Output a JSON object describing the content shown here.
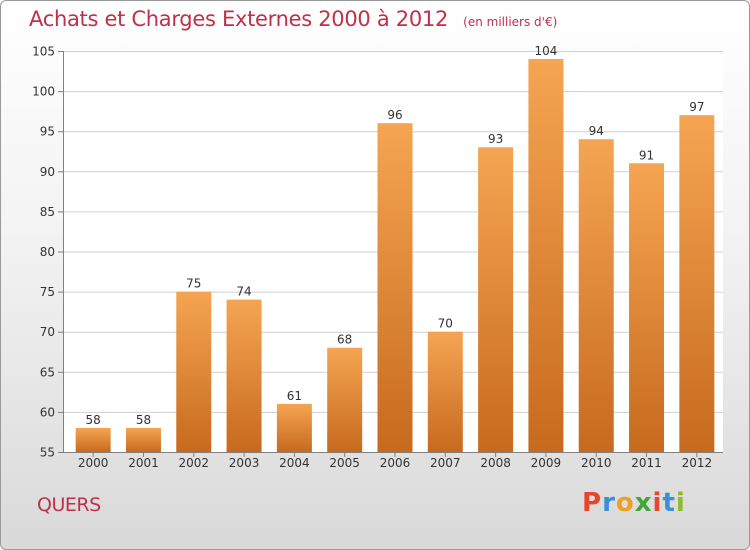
{
  "header": {
    "title": "Achats et Charges Externes 2000 à 2012",
    "unit": "(en milliers d'€)"
  },
  "footer": {
    "commune": "QUERS",
    "brand_letters": [
      "P",
      "r",
      "o",
      "x",
      "i",
      "t",
      "i"
    ],
    "brand_colors": [
      "#e8452c",
      "#3a8fd6",
      "#f0a01e",
      "#3fa63a",
      "#e8452c",
      "#3a8fd6",
      "#8bbd2a"
    ]
  },
  "colors": {
    "bar_top": "#f5a552",
    "bar_bottom": "#c76a1e",
    "title": "#c0304a",
    "grid": "#d0d0d0",
    "axis": "#808080"
  },
  "chart_data": {
    "type": "bar",
    "categories": [
      "2000",
      "2001",
      "2002",
      "2003",
      "2004",
      "2005",
      "2006",
      "2007",
      "2008",
      "2009",
      "2010",
      "2011",
      "2012"
    ],
    "values": [
      58,
      58,
      75,
      74,
      61,
      68,
      96,
      70,
      93,
      104,
      94,
      91,
      97
    ],
    "data_labels": [
      "58",
      "58",
      "75",
      "74",
      "61",
      "68",
      "96",
      "70",
      "93",
      "104",
      "94",
      "91",
      "97"
    ],
    "title": "Achats et Charges Externes 2000 à 2012",
    "xlabel": "",
    "ylabel": "",
    "ylim": [
      55,
      105
    ],
    "yticks": [
      55,
      60,
      65,
      70,
      75,
      80,
      85,
      90,
      95,
      100,
      105
    ],
    "grid": true,
    "legend": "none"
  }
}
